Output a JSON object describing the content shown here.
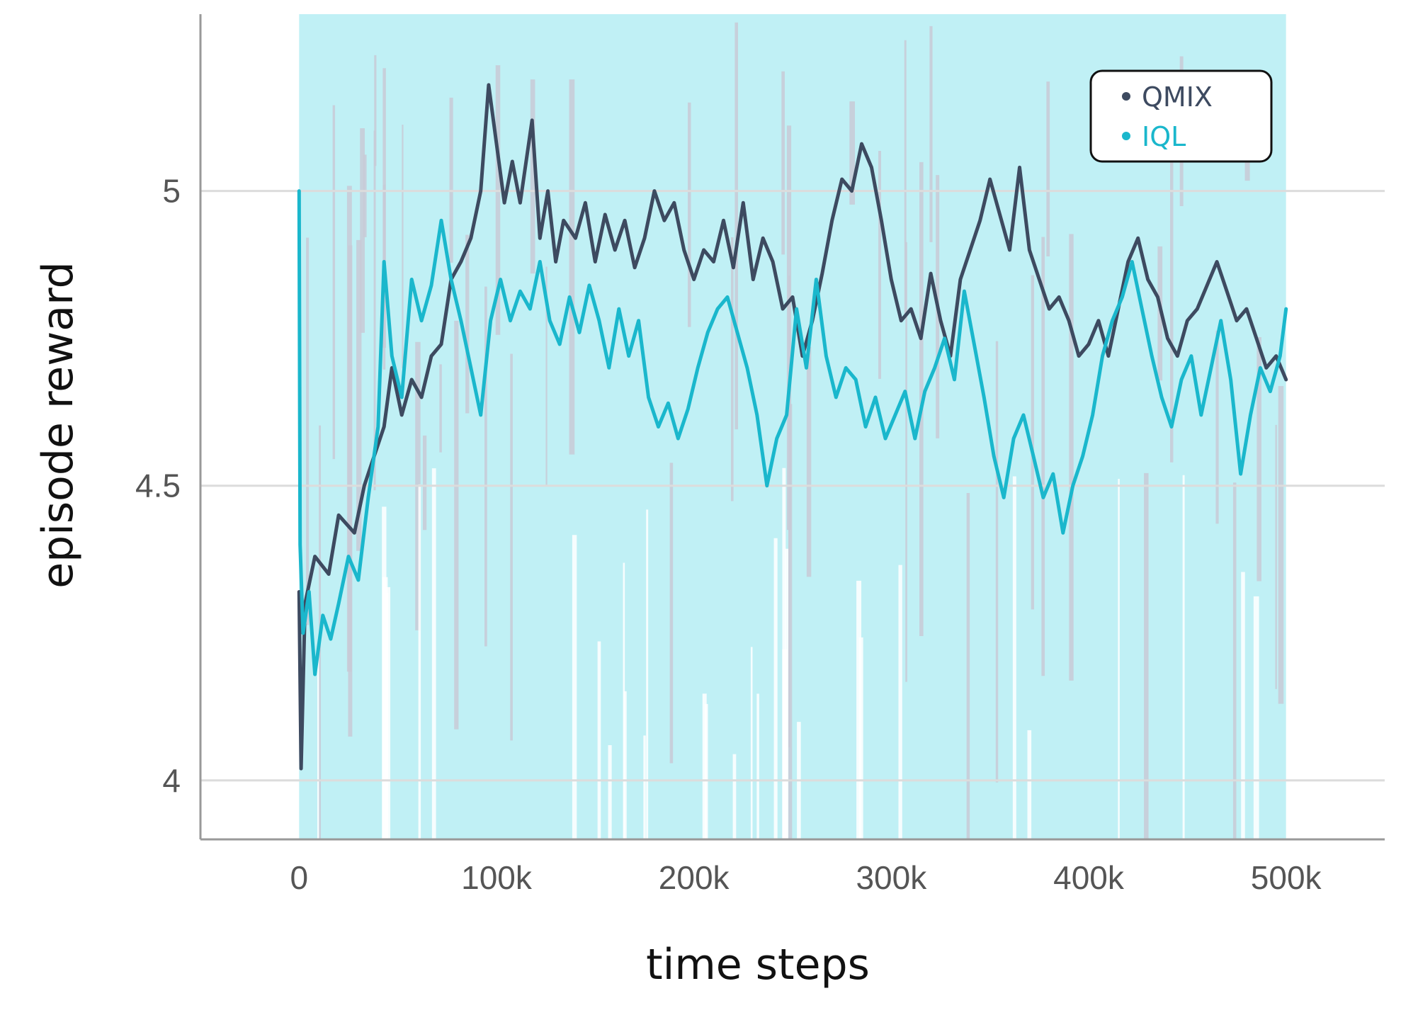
{
  "chart_data": {
    "type": "line",
    "xlabel": "time steps",
    "ylabel": "episode reward",
    "xlim": [
      -50000,
      550000
    ],
    "ylim": [
      3.9,
      5.3
    ],
    "xticks": [
      {
        "value": 0,
        "label": "0"
      },
      {
        "value": 100000,
        "label": "100k"
      },
      {
        "value": 200000,
        "label": "200k"
      },
      {
        "value": 300000,
        "label": "300k"
      },
      {
        "value": 400000,
        "label": "400k"
      },
      {
        "value": 500000,
        "label": "500k"
      }
    ],
    "yticks": [
      {
        "value": 4,
        "label": "4"
      },
      {
        "value": 4.5,
        "label": "4.5"
      },
      {
        "value": 5,
        "label": "5"
      }
    ],
    "grid": "horizontal",
    "legend_position": "top-right",
    "raw_band": {
      "color": "#c0f0f5",
      "x_range": [
        0,
        500000
      ],
      "y_range": [
        3.9,
        5.3
      ]
    },
    "series": [
      {
        "name": "QMIX",
        "color": "#3d4a60",
        "points": [
          [
            0,
            4.32
          ],
          [
            1000,
            4.02
          ],
          [
            3000,
            4.3
          ],
          [
            8000,
            4.38
          ],
          [
            15000,
            4.35
          ],
          [
            20000,
            4.45
          ],
          [
            28000,
            4.42
          ],
          [
            33000,
            4.5
          ],
          [
            38000,
            4.55
          ],
          [
            43000,
            4.6
          ],
          [
            47000,
            4.7
          ],
          [
            52000,
            4.62
          ],
          [
            57000,
            4.68
          ],
          [
            62000,
            4.65
          ],
          [
            67000,
            4.72
          ],
          [
            72000,
            4.74
          ],
          [
            77000,
            4.85
          ],
          [
            82000,
            4.88
          ],
          [
            87000,
            4.92
          ],
          [
            92000,
            5.0
          ],
          [
            96000,
            5.18
          ],
          [
            100000,
            5.08
          ],
          [
            104000,
            4.98
          ],
          [
            108000,
            5.05
          ],
          [
            112000,
            4.98
          ],
          [
            118000,
            5.12
          ],
          [
            122000,
            4.92
          ],
          [
            126000,
            5.0
          ],
          [
            130000,
            4.88
          ],
          [
            134000,
            4.95
          ],
          [
            140000,
            4.92
          ],
          [
            145000,
            4.98
          ],
          [
            150000,
            4.88
          ],
          [
            155000,
            4.96
          ],
          [
            160000,
            4.9
          ],
          [
            165000,
            4.95
          ],
          [
            170000,
            4.87
          ],
          [
            175000,
            4.92
          ],
          [
            180000,
            5.0
          ],
          [
            185000,
            4.95
          ],
          [
            190000,
            4.98
          ],
          [
            195000,
            4.9
          ],
          [
            200000,
            4.85
          ],
          [
            205000,
            4.9
          ],
          [
            210000,
            4.88
          ],
          [
            215000,
            4.95
          ],
          [
            220000,
            4.87
          ],
          [
            225000,
            4.98
          ],
          [
            230000,
            4.85
          ],
          [
            235000,
            4.92
          ],
          [
            240000,
            4.88
          ],
          [
            245000,
            4.8
          ],
          [
            250000,
            4.82
          ],
          [
            255000,
            4.72
          ],
          [
            260000,
            4.78
          ],
          [
            265000,
            4.86
          ],
          [
            270000,
            4.95
          ],
          [
            275000,
            5.02
          ],
          [
            280000,
            5.0
          ],
          [
            285000,
            5.08
          ],
          [
            290000,
            5.04
          ],
          [
            295000,
            4.95
          ],
          [
            300000,
            4.85
          ],
          [
            305000,
            4.78
          ],
          [
            310000,
            4.8
          ],
          [
            315000,
            4.75
          ],
          [
            320000,
            4.86
          ],
          [
            325000,
            4.78
          ],
          [
            330000,
            4.72
          ],
          [
            335000,
            4.85
          ],
          [
            340000,
            4.9
          ],
          [
            345000,
            4.95
          ],
          [
            350000,
            5.02
          ],
          [
            355000,
            4.96
          ],
          [
            360000,
            4.9
          ],
          [
            365000,
            5.04
          ],
          [
            370000,
            4.9
          ],
          [
            375000,
            4.85
          ],
          [
            380000,
            4.8
          ],
          [
            385000,
            4.82
          ],
          [
            390000,
            4.78
          ],
          [
            395000,
            4.72
          ],
          [
            400000,
            4.74
          ],
          [
            405000,
            4.78
          ],
          [
            410000,
            4.72
          ],
          [
            415000,
            4.8
          ],
          [
            420000,
            4.88
          ],
          [
            425000,
            4.92
          ],
          [
            430000,
            4.85
          ],
          [
            435000,
            4.82
          ],
          [
            440000,
            4.75
          ],
          [
            445000,
            4.72
          ],
          [
            450000,
            4.78
          ],
          [
            455000,
            4.8
          ],
          [
            460000,
            4.84
          ],
          [
            465000,
            4.88
          ],
          [
            470000,
            4.83
          ],
          [
            475000,
            4.78
          ],
          [
            480000,
            4.8
          ],
          [
            485000,
            4.75
          ],
          [
            490000,
            4.7
          ],
          [
            495000,
            4.72
          ],
          [
            500000,
            4.68
          ]
        ]
      },
      {
        "name": "IQL",
        "color": "#1ab7cc",
        "points": [
          [
            0,
            5.0
          ],
          [
            500,
            4.4
          ],
          [
            2000,
            4.25
          ],
          [
            5000,
            4.32
          ],
          [
            8000,
            4.18
          ],
          [
            12000,
            4.28
          ],
          [
            16000,
            4.24
          ],
          [
            20000,
            4.3
          ],
          [
            25000,
            4.38
          ],
          [
            30000,
            4.34
          ],
          [
            35000,
            4.48
          ],
          [
            40000,
            4.6
          ],
          [
            43000,
            4.88
          ],
          [
            47000,
            4.72
          ],
          [
            52000,
            4.65
          ],
          [
            57000,
            4.85
          ],
          [
            62000,
            4.78
          ],
          [
            67000,
            4.84
          ],
          [
            72000,
            4.95
          ],
          [
            77000,
            4.85
          ],
          [
            82000,
            4.78
          ],
          [
            87000,
            4.7
          ],
          [
            92000,
            4.62
          ],
          [
            97000,
            4.78
          ],
          [
            102000,
            4.85
          ],
          [
            107000,
            4.78
          ],
          [
            112000,
            4.83
          ],
          [
            117000,
            4.8
          ],
          [
            122000,
            4.88
          ],
          [
            127000,
            4.78
          ],
          [
            132000,
            4.74
          ],
          [
            137000,
            4.82
          ],
          [
            142000,
            4.76
          ],
          [
            147000,
            4.84
          ],
          [
            152000,
            4.78
          ],
          [
            157000,
            4.7
          ],
          [
            162000,
            4.8
          ],
          [
            167000,
            4.72
          ],
          [
            172000,
            4.78
          ],
          [
            177000,
            4.65
          ],
          [
            182000,
            4.6
          ],
          [
            187000,
            4.64
          ],
          [
            192000,
            4.58
          ],
          [
            197000,
            4.63
          ],
          [
            202000,
            4.7
          ],
          [
            207000,
            4.76
          ],
          [
            212000,
            4.8
          ],
          [
            217000,
            4.82
          ],
          [
            222000,
            4.76
          ],
          [
            227000,
            4.7
          ],
          [
            232000,
            4.62
          ],
          [
            237000,
            4.5
          ],
          [
            242000,
            4.58
          ],
          [
            247000,
            4.62
          ],
          [
            252000,
            4.8
          ],
          [
            257000,
            4.7
          ],
          [
            262000,
            4.85
          ],
          [
            267000,
            4.72
          ],
          [
            272000,
            4.65
          ],
          [
            277000,
            4.7
          ],
          [
            282000,
            4.68
          ],
          [
            287000,
            4.6
          ],
          [
            292000,
            4.65
          ],
          [
            297000,
            4.58
          ],
          [
            302000,
            4.62
          ],
          [
            307000,
            4.66
          ],
          [
            312000,
            4.58
          ],
          [
            317000,
            4.66
          ],
          [
            322000,
            4.7
          ],
          [
            327000,
            4.75
          ],
          [
            332000,
            4.68
          ],
          [
            337000,
            4.83
          ],
          [
            342000,
            4.74
          ],
          [
            347000,
            4.65
          ],
          [
            352000,
            4.55
          ],
          [
            357000,
            4.48
          ],
          [
            362000,
            4.58
          ],
          [
            367000,
            4.62
          ],
          [
            372000,
            4.55
          ],
          [
            377000,
            4.48
          ],
          [
            382000,
            4.52
          ],
          [
            387000,
            4.42
          ],
          [
            392000,
            4.5
          ],
          [
            397000,
            4.55
          ],
          [
            402000,
            4.62
          ],
          [
            407000,
            4.72
          ],
          [
            412000,
            4.78
          ],
          [
            417000,
            4.82
          ],
          [
            422000,
            4.88
          ],
          [
            427000,
            4.8
          ],
          [
            432000,
            4.72
          ],
          [
            437000,
            4.65
          ],
          [
            442000,
            4.6
          ],
          [
            447000,
            4.68
          ],
          [
            452000,
            4.72
          ],
          [
            457000,
            4.62
          ],
          [
            462000,
            4.7
          ],
          [
            467000,
            4.78
          ],
          [
            472000,
            4.68
          ],
          [
            477000,
            4.52
          ],
          [
            482000,
            4.62
          ],
          [
            487000,
            4.7
          ],
          [
            492000,
            4.66
          ],
          [
            497000,
            4.72
          ],
          [
            500000,
            4.8
          ]
        ]
      }
    ]
  }
}
